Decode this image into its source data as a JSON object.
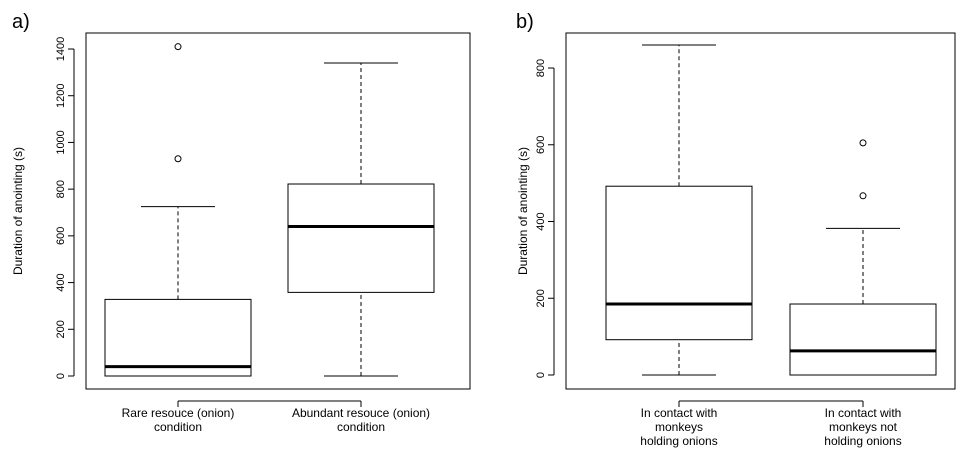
{
  "chart_data": [
    {
      "type": "boxplot",
      "panel_label": "a)",
      "xlabel": "",
      "ylabel": "Duration of anointing (s)",
      "ylim": [
        0,
        1400
      ],
      "yticks": [
        0,
        200,
        400,
        600,
        800,
        1000,
        1200,
        1400
      ],
      "grid": false,
      "boxes": [
        {
          "category_lines": [
            "Rare resouce (onion)",
            "condition"
          ],
          "min": 0,
          "q1": 0,
          "median": 40,
          "q3": 328,
          "max": 725,
          "outliers": [
            930,
            1410
          ]
        },
        {
          "category_lines": [
            "Abundant resouce (onion)",
            "condition"
          ],
          "min": 0,
          "q1": 358,
          "median": 640,
          "q3": 822,
          "max": 1340,
          "outliers": []
        }
      ]
    },
    {
      "type": "boxplot",
      "panel_label": "b)",
      "xlabel": "",
      "ylabel": "Duration of anointing (s)",
      "ylim": [
        0,
        860
      ],
      "yticks": [
        0,
        200,
        400,
        600,
        800
      ],
      "grid": false,
      "boxes": [
        {
          "category_lines": [
            "In contact with",
            "monkeys",
            "holding onions"
          ],
          "min": 0,
          "q1": 92,
          "median": 185,
          "q3": 492,
          "max": 860,
          "outliers": []
        },
        {
          "category_lines": [
            "In contact with",
            "monkeys not",
            "holding onions"
          ],
          "min": 0,
          "q1": 0,
          "median": 63,
          "q3": 185,
          "max": 382,
          "outliers": [
            467,
            605
          ]
        }
      ]
    }
  ]
}
